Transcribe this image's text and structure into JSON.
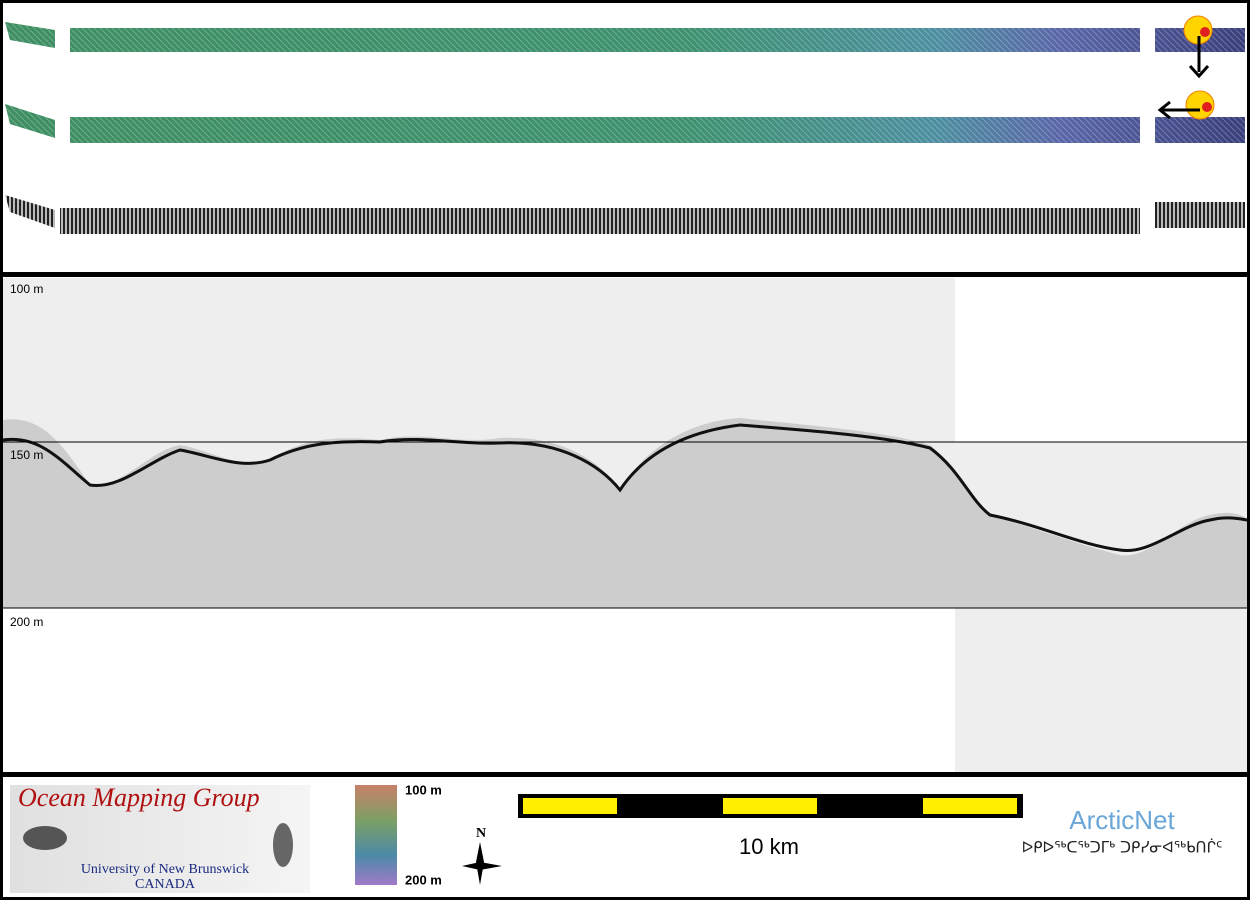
{
  "profile": {
    "depth_labels": [
      "100 m",
      "150 m",
      "200 m"
    ]
  },
  "logo": {
    "title": "Ocean Mapping Group",
    "subtitle": "University of New Brunswick",
    "country": "CANADA"
  },
  "colorbar": {
    "top_label": "100 m",
    "bottom_label": "200 m"
  },
  "north_arrow": {
    "label": "N"
  },
  "scale_bar": {
    "label": "10 km"
  },
  "partner": {
    "name": "ArcticNet",
    "inuktitut": "ᐅᑭᐅᖅᑕᖅᑐᒥᒃ ᑐᑭᓯᓂᐊᖅᑲᑎᒌᑦ"
  }
}
